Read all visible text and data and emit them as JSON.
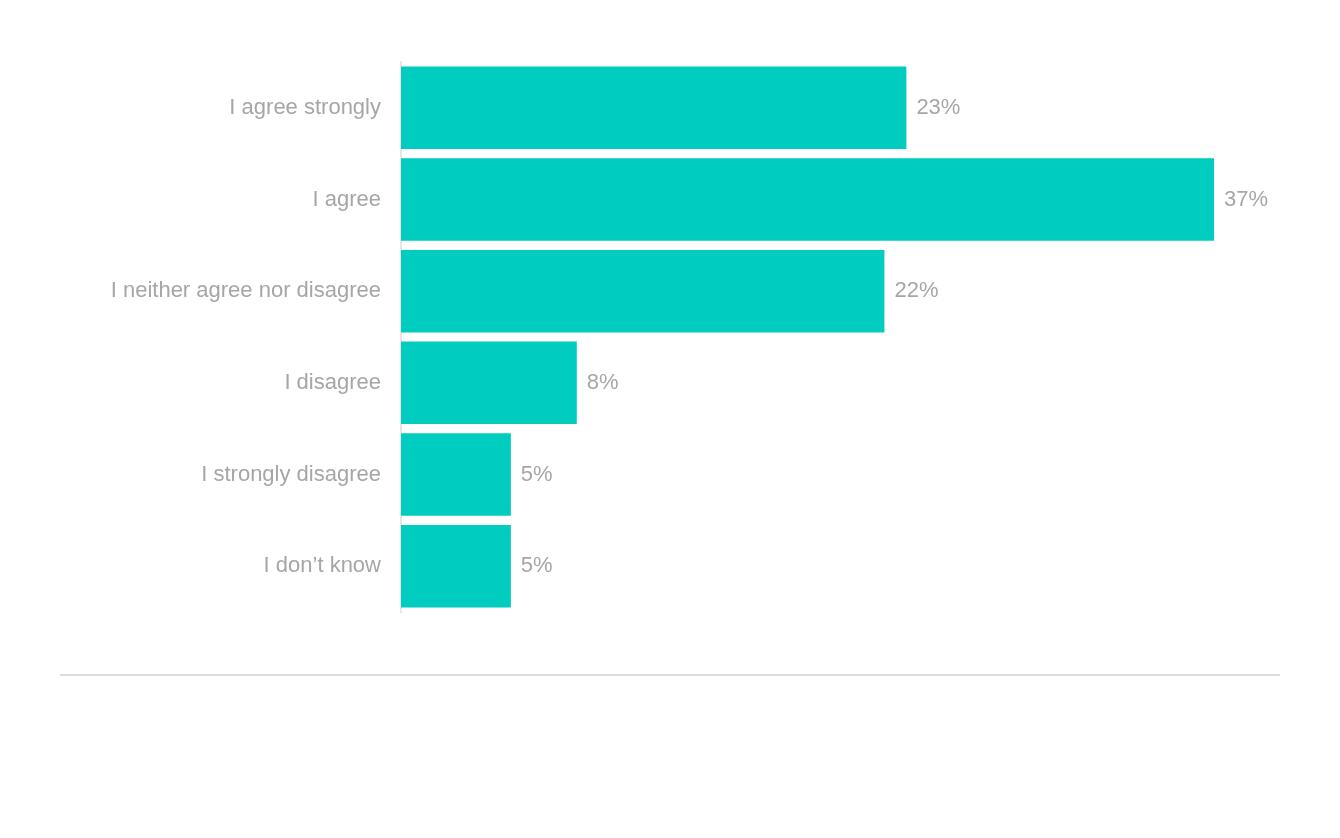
{
  "chart_data": {
    "type": "bar",
    "orientation": "horizontal",
    "categories": [
      "I agree strongly",
      "I agree",
      "I neither agree nor disagree",
      "I disagree",
      "I strongly disagree",
      "I don’t know"
    ],
    "values": [
      23,
      37,
      22,
      8,
      5,
      5
    ],
    "value_labels": [
      "23%",
      "37%",
      "22%",
      "8%",
      "5%",
      "5%"
    ],
    "color": "#00ccbf"
  }
}
